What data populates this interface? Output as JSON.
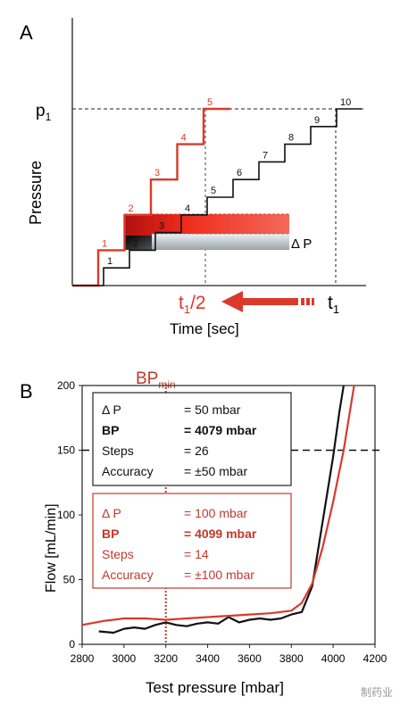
{
  "panel_a": {
    "label": "A",
    "y_axis_label": "Pressure",
    "x_axis_label": "Time [sec]",
    "p1_label": "p",
    "p1_sub": "1",
    "t1_label": "t",
    "t1_sub": "1",
    "t1half_label": "t",
    "t1half_sub": "1",
    "t1half_suffix": "/2",
    "delta_p_label": "Δ P",
    "red_steps": [
      "1",
      "2",
      "3",
      "4",
      "5"
    ],
    "black_steps": [
      "1",
      "2",
      "3",
      "4",
      "5",
      "6",
      "7",
      "8",
      "9",
      "10"
    ],
    "colors": {
      "red": "#d93a2b",
      "black": "#111111",
      "grey": "#c9ced3"
    }
  },
  "panel_b": {
    "label": "B",
    "bpmin_label": "BP",
    "bpmin_sub": "min",
    "box_black": {
      "rows": [
        {
          "key": "Δ P",
          "value": "= 50 mbar",
          "bold": false
        },
        {
          "key": "BP",
          "value": "= 4079 mbar",
          "bold": true
        },
        {
          "key": "Steps",
          "value": "= 26",
          "bold": false
        },
        {
          "key": "Accuracy",
          "value": "= ±50 mbar",
          "bold": false
        }
      ]
    },
    "box_red": {
      "rows": [
        {
          "key": "Δ P",
          "value": "= 100 mbar",
          "bold": false
        },
        {
          "key": "BP",
          "value": "= 4099 mbar",
          "bold": true
        },
        {
          "key": "Steps",
          "value": "= 14",
          "bold": false
        },
        {
          "key": "Accuracy",
          "value": "= ±100 mbar",
          "bold": false
        }
      ]
    },
    "watermark": "制药业"
  },
  "chart_data": [
    {
      "type": "line",
      "xlabel": "Time [sec]",
      "ylabel": "Pressure",
      "series": [
        {
          "color": "#d93a2b",
          "steps": [
            1,
            2,
            3,
            4,
            5
          ],
          "step_pressure_fraction": [
            0.2,
            0.4,
            0.6,
            0.8,
            1.0
          ],
          "end_time_label": "t1/2"
        },
        {
          "color": "#111111",
          "steps": [
            1,
            2,
            3,
            4,
            5,
            6,
            7,
            8,
            9,
            10
          ],
          "step_pressure_fraction": [
            0.1,
            0.2,
            0.3,
            0.4,
            0.5,
            0.6,
            0.7,
            0.8,
            0.9,
            1.0
          ],
          "end_time_label": "t1"
        }
      ],
      "annotations": [
        "p1",
        "t1",
        "t1/2",
        "Δ P"
      ]
    },
    {
      "type": "line",
      "xlabel": "Test pressure [mbar]",
      "ylabel": "Flow [mL/min]",
      "xlim": [
        2800,
        4200
      ],
      "ylim": [
        0,
        200
      ],
      "xticks": [
        2800,
        3000,
        3200,
        3400,
        3600,
        3800,
        4000,
        4200
      ],
      "yticks": [
        0,
        50,
        100,
        150,
        200
      ],
      "reference_lines": {
        "horizontal_flow": 150,
        "vertical_BPmin": 3200
      },
      "series": [
        {
          "color": "#111111",
          "x": [
            2880,
            2950,
            3000,
            3050,
            3100,
            3150,
            3200,
            3250,
            3300,
            3350,
            3400,
            3450,
            3500,
            3550,
            3600,
            3650,
            3700,
            3750,
            3800,
            3850,
            3900,
            3950,
            4000,
            4030,
            4050
          ],
          "y": [
            10,
            9,
            12,
            13,
            12,
            15,
            17,
            15,
            14,
            16,
            17,
            16,
            21,
            17,
            19,
            20,
            19,
            20,
            23,
            25,
            45,
            95,
            145,
            180,
            200
          ]
        },
        {
          "color": "#d93a2b",
          "x": [
            2800,
            2900,
            3000,
            3100,
            3200,
            3300,
            3400,
            3500,
            3600,
            3700,
            3800,
            3850,
            3900,
            3950,
            4000,
            4050,
            4080,
            4100
          ],
          "y": [
            15,
            18,
            20,
            20,
            19,
            20,
            21,
            22,
            23,
            24,
            26,
            32,
            47,
            75,
            110,
            150,
            180,
            200
          ]
        }
      ]
    }
  ]
}
